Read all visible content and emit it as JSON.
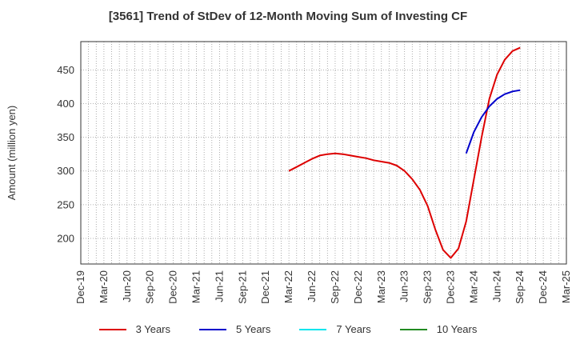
{
  "chart_data": {
    "type": "line",
    "title": "[3561]  Trend of StDev of 12-Month Moving Sum of Investing CF",
    "ylabel": "Amount (million yen)",
    "xlabel": "",
    "ylim": [
      162,
      492
    ],
    "yticks": [
      200,
      250,
      300,
      350,
      400,
      450
    ],
    "x_range": [
      "2019-12",
      "2025-03"
    ],
    "xticks": [
      "Dec-19",
      "Mar-20",
      "Jun-20",
      "Sep-20",
      "Dec-20",
      "Mar-21",
      "Jun-21",
      "Sep-21",
      "Dec-21",
      "Mar-22",
      "Jun-22",
      "Sep-22",
      "Dec-22",
      "Mar-23",
      "Jun-23",
      "Sep-23",
      "Dec-23",
      "Mar-24",
      "Jun-24",
      "Sep-24",
      "Dec-24",
      "Mar-25"
    ],
    "grid": true,
    "legend_position": "bottom",
    "series": [
      {
        "name": "3 Years",
        "color": "#dd0000",
        "x": [
          "2022-03",
          "2022-04",
          "2022-05",
          "2022-06",
          "2022-07",
          "2022-08",
          "2022-09",
          "2022-10",
          "2022-11",
          "2022-12",
          "2023-01",
          "2023-02",
          "2023-03",
          "2023-04",
          "2023-05",
          "2023-06",
          "2023-07",
          "2023-08",
          "2023-09",
          "2023-10",
          "2023-11",
          "2023-12",
          "2024-01",
          "2024-02",
          "2024-03",
          "2024-04",
          "2024-05",
          "2024-06",
          "2024-07",
          "2024-08",
          "2024-09"
        ],
        "values": [
          300,
          306,
          312,
          318,
          323,
          325,
          326,
          325,
          323,
          321,
          319,
          316,
          314,
          312,
          308,
          300,
          288,
          272,
          248,
          213,
          183,
          171,
          185,
          225,
          288,
          350,
          407,
          443,
          465,
          478,
          483
        ]
      },
      {
        "name": "5 Years",
        "color": "#0000cc",
        "x": [
          "2024-02",
          "2024-03",
          "2024-04",
          "2024-05",
          "2024-06",
          "2024-07",
          "2024-08",
          "2024-09"
        ],
        "values": [
          326,
          358,
          380,
          396,
          407,
          414,
          418,
          420
        ]
      },
      {
        "name": "7 Years",
        "color": "#00e5ee",
        "x": [],
        "values": []
      },
      {
        "name": "10 Years",
        "color": "#228b22",
        "x": [],
        "values": []
      }
    ]
  }
}
